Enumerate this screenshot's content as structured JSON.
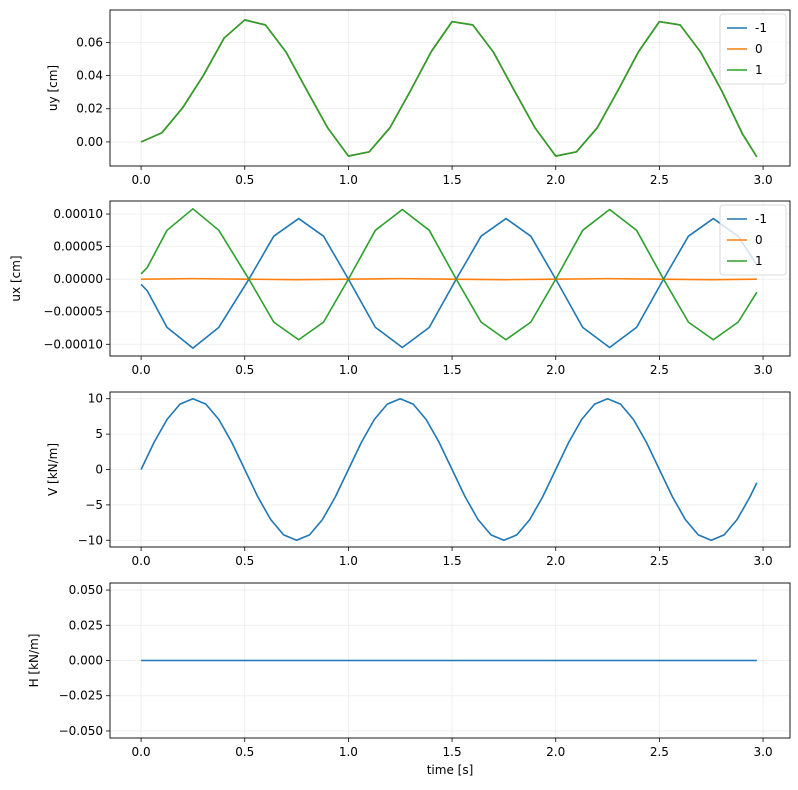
{
  "chart_data": [
    {
      "type": "line",
      "ylabel": "uy [cm]",
      "xlabel": "",
      "xlim": [
        -0.15,
        3.13
      ],
      "ylim": [
        -0.0145,
        0.0795
      ],
      "xticks": [
        0.0,
        0.5,
        1.0,
        1.5,
        2.0,
        2.5,
        3.0
      ],
      "xtick_labels": [
        "0.0",
        "0.5",
        "1.0",
        "1.5",
        "2.0",
        "2.5",
        "3.0"
      ],
      "yticks": [
        0.0,
        0.02,
        0.04,
        0.06
      ],
      "ytick_labels": [
        "0.00",
        "0.02",
        "0.04",
        "0.06"
      ],
      "grid": true,
      "legend": "top-right",
      "series": [
        {
          "name": "-1",
          "color": "#1f77b4",
          "x": [
            0.0,
            0.1,
            0.2,
            0.3,
            0.4,
            0.5,
            0.6,
            0.7,
            0.8,
            0.9,
            1.0,
            1.1,
            1.2,
            1.3,
            1.4,
            1.5,
            1.6,
            1.7,
            1.8,
            1.9,
            2.0,
            2.1,
            2.2,
            2.3,
            2.4,
            2.5,
            2.6,
            2.7,
            2.8,
            2.9,
            2.97
          ],
          "y": [
            0.0,
            0.0055,
            0.0205,
            0.04,
            0.0625,
            0.0735,
            0.0705,
            0.054,
            0.031,
            0.0085,
            -0.0085,
            -0.006,
            0.0085,
            0.031,
            0.0545,
            0.0725,
            0.0705,
            0.054,
            0.031,
            0.0085,
            -0.0085,
            -0.006,
            0.0085,
            0.031,
            0.0545,
            0.0725,
            0.0705,
            0.054,
            0.031,
            0.005,
            -0.009
          ]
        },
        {
          "name": "0",
          "color": "#ff7f0e",
          "x": [
            0.0,
            0.1,
            0.2,
            0.3,
            0.4,
            0.5,
            0.6,
            0.7,
            0.8,
            0.9,
            1.0,
            1.1,
            1.2,
            1.3,
            1.4,
            1.5,
            1.6,
            1.7,
            1.8,
            1.9,
            2.0,
            2.1,
            2.2,
            2.3,
            2.4,
            2.5,
            2.6,
            2.7,
            2.8,
            2.9,
            2.97
          ],
          "y": [
            0.0,
            0.0055,
            0.0205,
            0.04,
            0.0625,
            0.0735,
            0.0705,
            0.054,
            0.031,
            0.0085,
            -0.0085,
            -0.006,
            0.0085,
            0.031,
            0.0545,
            0.0725,
            0.0705,
            0.054,
            0.031,
            0.0085,
            -0.0085,
            -0.006,
            0.0085,
            0.031,
            0.0545,
            0.0725,
            0.0705,
            0.054,
            0.031,
            0.005,
            -0.009
          ]
        },
        {
          "name": "1",
          "color": "#2ca02c",
          "x": [
            0.0,
            0.1,
            0.2,
            0.3,
            0.4,
            0.5,
            0.6,
            0.7,
            0.8,
            0.9,
            1.0,
            1.1,
            1.2,
            1.3,
            1.4,
            1.5,
            1.6,
            1.7,
            1.8,
            1.9,
            2.0,
            2.1,
            2.2,
            2.3,
            2.4,
            2.5,
            2.6,
            2.7,
            2.8,
            2.9,
            2.97
          ],
          "y": [
            0.0,
            0.0055,
            0.0205,
            0.04,
            0.0625,
            0.0735,
            0.0705,
            0.054,
            0.031,
            0.0085,
            -0.0085,
            -0.006,
            0.0085,
            0.031,
            0.0545,
            0.0725,
            0.0705,
            0.054,
            0.031,
            0.0085,
            -0.0085,
            -0.006,
            0.0085,
            0.031,
            0.0545,
            0.0725,
            0.0705,
            0.054,
            0.031,
            0.005,
            -0.009
          ]
        }
      ]
    },
    {
      "type": "line",
      "ylabel": "ux [cm]",
      "xlabel": "",
      "xlim": [
        -0.15,
        3.13
      ],
      "ylim": [
        -0.000118,
        0.00012
      ],
      "xticks": [
        0.0,
        0.5,
        1.0,
        1.5,
        2.0,
        2.5,
        3.0
      ],
      "xtick_labels": [
        "0.0",
        "0.5",
        "1.0",
        "1.5",
        "2.0",
        "2.5",
        "3.0"
      ],
      "yticks": [
        -0.0001,
        -5e-05,
        0.0,
        5e-05,
        0.0001
      ],
      "ytick_labels": [
        "−0.00010",
        "−0.00005",
        "0.00000",
        "0.00005",
        "0.00010"
      ],
      "grid": true,
      "legend": "top-right",
      "series": [
        {
          "name": "-1",
          "color": "#1f77b4",
          "x": [
            0.0,
            0.03,
            0.125,
            0.25,
            0.375,
            0.52,
            0.64,
            0.76,
            0.88,
            1.0,
            1.13,
            1.26,
            1.39,
            1.52,
            1.64,
            1.76,
            1.88,
            2.0,
            2.13,
            2.26,
            2.39,
            2.52,
            2.64,
            2.76,
            2.88,
            2.97
          ],
          "y": [
            -8e-06,
            -1.8e-05,
            -7.4e-05,
            -0.000106,
            -7.4e-05,
            0.0,
            6.6e-05,
            9.3e-05,
            6.6e-05,
            0.0,
            -7.4e-05,
            -0.000105,
            -7.4e-05,
            0.0,
            6.6e-05,
            9.3e-05,
            6.6e-05,
            0.0,
            -7.4e-05,
            -0.000105,
            -7.4e-05,
            0.0,
            6.6e-05,
            9.3e-05,
            6.6e-05,
            2.2e-05
          ]
        },
        {
          "name": "0",
          "color": "#ff7f0e",
          "x": [
            0.0,
            0.25,
            0.5,
            0.75,
            1.0,
            1.25,
            1.5,
            1.75,
            2.0,
            2.25,
            2.5,
            2.75,
            2.97
          ],
          "y": [
            0.0,
            8e-07,
            0.0,
            -8e-07,
            0.0,
            8e-07,
            0.0,
            -8e-07,
            0.0,
            8e-07,
            0.0,
            -8e-07,
            0.0
          ]
        },
        {
          "name": "1",
          "color": "#2ca02c",
          "x": [
            0.0,
            0.03,
            0.125,
            0.25,
            0.375,
            0.52,
            0.64,
            0.76,
            0.88,
            1.0,
            1.13,
            1.26,
            1.39,
            1.52,
            1.64,
            1.76,
            1.88,
            2.0,
            2.13,
            2.26,
            2.39,
            2.52,
            2.64,
            2.76,
            2.88,
            2.97
          ],
          "y": [
            8e-06,
            1.8e-05,
            7.5e-05,
            0.000108,
            7.5e-05,
            0.0,
            -6.6e-05,
            -9.3e-05,
            -6.6e-05,
            0.0,
            7.5e-05,
            0.000107,
            7.5e-05,
            0.0,
            -6.6e-05,
            -9.3e-05,
            -6.6e-05,
            0.0,
            7.5e-05,
            0.000107,
            7.5e-05,
            0.0,
            -6.6e-05,
            -9.3e-05,
            -6.6e-05,
            -2e-05
          ]
        }
      ]
    },
    {
      "type": "line",
      "ylabel": "V [kN/m]",
      "xlabel": "",
      "xlim": [
        -0.15,
        3.13
      ],
      "ylim": [
        -10.95,
        10.95
      ],
      "xticks": [
        0.0,
        0.5,
        1.0,
        1.5,
        2.0,
        2.5,
        3.0
      ],
      "xtick_labels": [
        "0.0",
        "0.5",
        "1.0",
        "1.5",
        "2.0",
        "2.5",
        "3.0"
      ],
      "yticks": [
        -10,
        -5,
        0,
        5,
        10
      ],
      "ytick_labels": [
        "−10",
        "−5",
        "0",
        "5",
        "10"
      ],
      "grid": true,
      "legend": "none",
      "series": [
        {
          "color": "#1f77b4",
          "x": [
            0.0,
            0.0625,
            0.125,
            0.1875,
            0.25,
            0.3125,
            0.375,
            0.4375,
            0.5,
            0.5625,
            0.625,
            0.6875,
            0.75,
            0.8125,
            0.875,
            0.9375,
            1.0,
            1.0625,
            1.125,
            1.1875,
            1.25,
            1.3125,
            1.375,
            1.4375,
            1.5,
            1.5625,
            1.625,
            1.6875,
            1.75,
            1.8125,
            1.875,
            1.9375,
            2.0,
            2.0625,
            2.125,
            2.1875,
            2.25,
            2.3125,
            2.375,
            2.4375,
            2.5,
            2.5625,
            2.625,
            2.6875,
            2.75,
            2.8125,
            2.875,
            2.9375,
            2.97
          ],
          "y": [
            0.0,
            3.83,
            7.07,
            9.24,
            10.0,
            9.24,
            7.07,
            3.83,
            0.0,
            -3.83,
            -7.07,
            -9.24,
            -10.0,
            -9.24,
            -7.07,
            -3.83,
            0.0,
            3.83,
            7.07,
            9.24,
            10.0,
            9.24,
            7.07,
            3.83,
            0.0,
            -3.83,
            -7.07,
            -9.24,
            -10.0,
            -9.24,
            -7.07,
            -3.83,
            0.0,
            3.83,
            7.07,
            9.24,
            10.0,
            9.24,
            7.07,
            3.83,
            0.0,
            -3.83,
            -7.07,
            -9.24,
            -10.0,
            -9.24,
            -7.07,
            -3.83,
            -1.87
          ]
        }
      ]
    },
    {
      "type": "line",
      "ylabel": "H [kN/m]",
      "xlabel": "time [s]",
      "xlim": [
        -0.15,
        3.13
      ],
      "ylim": [
        -0.055,
        0.055
      ],
      "xticks": [
        0.0,
        0.5,
        1.0,
        1.5,
        2.0,
        2.5,
        3.0
      ],
      "xtick_labels": [
        "0.0",
        "0.5",
        "1.0",
        "1.5",
        "2.0",
        "2.5",
        "3.0"
      ],
      "yticks": [
        -0.05,
        -0.025,
        0.0,
        0.025,
        0.05
      ],
      "ytick_labels": [
        "−0.050",
        "−0.025",
        "0.000",
        "0.025",
        "0.050"
      ],
      "grid": true,
      "legend": "none",
      "series": [
        {
          "color": "#1f77b4",
          "x": [
            0.0,
            2.97
          ],
          "y": [
            0.0,
            0.0
          ]
        }
      ]
    }
  ]
}
